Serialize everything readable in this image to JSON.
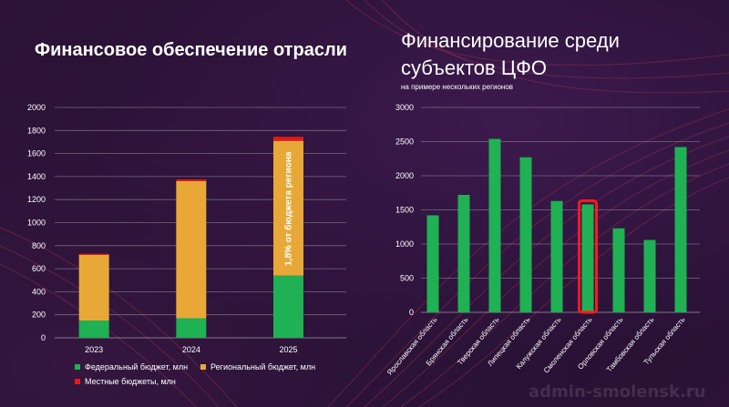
{
  "chart_data": [
    {
      "type": "bar",
      "stacked": true,
      "title": "Финансовое обеспечение отрасли",
      "categories": [
        "2023",
        "2024",
        "2025"
      ],
      "ylim": [
        0,
        2000
      ],
      "yticks": [
        0,
        200,
        400,
        600,
        800,
        1000,
        1200,
        1400,
        1600,
        1800,
        2000
      ],
      "grid": true,
      "legend_position": "bottom",
      "series": [
        {
          "name": "Федеральный бюджет, млн",
          "values": [
            150,
            170,
            540
          ],
          "color": "#1fb153"
        },
        {
          "name": "Региональный бюджет, млн",
          "values": [
            570,
            1190,
            1170
          ],
          "color": "#e8a838"
        },
        {
          "name": "Местные бюджеты, млн",
          "values": [
            10,
            15,
            35
          ],
          "color": "#e21b1b"
        }
      ],
      "annotations": [
        {
          "category": "2025",
          "text": "1,8% от бюджета региона"
        }
      ]
    },
    {
      "type": "bar",
      "title": "Финансирование среди субъектов ЦФО",
      "subtitle": "на примере нескольких регионов",
      "categories": [
        "Ярославская область",
        "Брянская область",
        "Тверская область",
        "Липецкая область",
        "Калужская область",
        "Смоленская область",
        "Орловская область",
        "Тамбовская область",
        "Тульская область"
      ],
      "values": [
        1420,
        1720,
        2540,
        2270,
        1630,
        1580,
        1230,
        1060,
        2420
      ],
      "ylim": [
        0,
        3000
      ],
      "yticks": [
        0,
        500,
        1000,
        1500,
        2000,
        2500,
        3000
      ],
      "grid": true,
      "color": "#1fb153",
      "highlighted_category": "Смоленская область",
      "highlight_color": "#ff1a1a"
    }
  ],
  "watermark": "admin-smolensk.ru"
}
